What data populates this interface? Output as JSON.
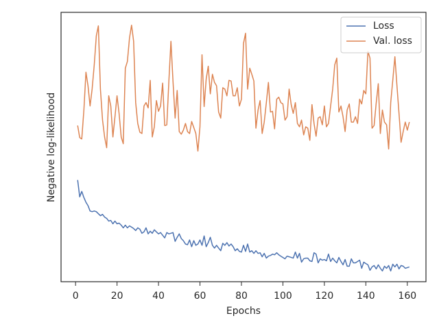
{
  "chart_data": {
    "type": "line",
    "xlabel": "Epochs",
    "ylabel": "Negative log-likelihood",
    "x": [
      1,
      2,
      3,
      4,
      5,
      6,
      7,
      8,
      9,
      10,
      11,
      12,
      13,
      14,
      15,
      16,
      17,
      18,
      19,
      20,
      21,
      22,
      23,
      24,
      25,
      26,
      27,
      28,
      29,
      30,
      31,
      32,
      33,
      34,
      35,
      36,
      37,
      38,
      39,
      40,
      41,
      42,
      43,
      44,
      45,
      46,
      47,
      48,
      49,
      50,
      51,
      52,
      53,
      54,
      55,
      56,
      57,
      58,
      59,
      60,
      61,
      62,
      63,
      64,
      65,
      66,
      67,
      68,
      69,
      70,
      71,
      72,
      73,
      74,
      75,
      76,
      77,
      78,
      79,
      80,
      81,
      82,
      83,
      84,
      85,
      86,
      87,
      88,
      89,
      90,
      91,
      92,
      93,
      94,
      95,
      96,
      97,
      98,
      99,
      100,
      101,
      102,
      103,
      104,
      105,
      106,
      107,
      108,
      109,
      110,
      111,
      112,
      113,
      114,
      115,
      116,
      117,
      118,
      119,
      120,
      121,
      122,
      123,
      124,
      125,
      126,
      127,
      128,
      129,
      130,
      131,
      132,
      133,
      134,
      135,
      136,
      137,
      138,
      139,
      140,
      141,
      142,
      143,
      144,
      145,
      146,
      147,
      148,
      149,
      150,
      151,
      152,
      153,
      154,
      155,
      156,
      157,
      158,
      159,
      160,
      161
    ],
    "series": [
      {
        "name": "Loss",
        "color": "#4c72b0",
        "values": [
          15.1,
          12.6,
          13.4,
          12.5,
          11.8,
          11.3,
          10.5,
          10.4,
          10.5,
          10.4,
          10.1,
          9.8,
          10.0,
          9.6,
          9.4,
          9.0,
          9.1,
          8.6,
          9.0,
          8.6,
          8.7,
          8.4,
          8.0,
          8.4,
          8.0,
          8.3,
          8.1,
          7.9,
          7.6,
          8.0,
          7.8,
          7.2,
          7.4,
          8.0,
          7.1,
          7.5,
          7.2,
          7.7,
          7.4,
          7.1,
          7.3,
          6.9,
          6.5,
          7.3,
          7.1,
          7.2,
          7.3,
          6.0,
          6.6,
          7.1,
          6.4,
          6.1,
          5.6,
          5.5,
          6.2,
          5.2,
          6.1,
          5.4,
          5.6,
          6.2,
          5.4,
          6.8,
          5.2,
          5.8,
          6.6,
          5.4,
          5.0,
          5.4,
          5.0,
          4.6,
          5.7,
          5.4,
          5.8,
          5.3,
          5.6,
          5.2,
          4.6,
          4.9,
          4.5,
          4.4,
          5.4,
          4.5,
          5.6,
          4.4,
          4.6,
          4.2,
          4.6,
          4.2,
          4.3,
          3.7,
          4.2,
          3.5,
          3.8,
          3.9,
          4.1,
          4.0,
          4.3,
          4.0,
          3.8,
          3.6,
          3.4,
          3.8,
          3.7,
          3.6,
          3.5,
          4.4,
          3.5,
          4.2,
          2.9,
          3.4,
          3.5,
          3.5,
          3.1,
          3.0,
          4.3,
          4.1,
          2.8,
          3.4,
          3.2,
          3.3,
          3.1,
          4.1,
          3.0,
          3.5,
          3.1,
          2.8,
          3.6,
          3.0,
          2.5,
          3.3,
          2.3,
          2.3,
          3.4,
          2.8,
          2.8,
          3.0,
          3.2,
          2.0,
          2.9,
          2.7,
          2.5,
          1.7,
          2.2,
          2.4,
          1.9,
          2.5,
          2.0,
          1.6,
          2.3,
          2.0,
          2.4,
          1.6,
          2.6,
          2.2,
          2.6,
          1.9,
          2.4,
          2.3,
          2.0,
          2.1,
          2.2
        ]
      },
      {
        "name": "Val. loss",
        "color": "#dd8452",
        "values": [
          23.2,
          21.4,
          21.2,
          25.5,
          31.1,
          29.1,
          26.1,
          28.6,
          32.2,
          36.5,
          38.0,
          28.6,
          24.0,
          21.5,
          19.9,
          27.6,
          26.1,
          21.5,
          24.5,
          27.6,
          25.0,
          21.5,
          20.5,
          31.7,
          32.7,
          36.2,
          38.1,
          35.7,
          26.6,
          23.5,
          22.2,
          22.0,
          26.1,
          26.6,
          25.8,
          29.9,
          21.5,
          23.0,
          26.9,
          25.3,
          26.1,
          29.5,
          23.2,
          23.3,
          29.8,
          35.7,
          29.8,
          24.3,
          28.4,
          22.3,
          21.9,
          22.5,
          23.5,
          22.3,
          22.0,
          23.8,
          22.9,
          22.0,
          19.4,
          23.0,
          33.7,
          26.0,
          30.1,
          32.0,
          27.9,
          30.8,
          29.6,
          29.1,
          25.2,
          24.3,
          28.8,
          28.6,
          27.6,
          29.9,
          29.8,
          27.6,
          27.6,
          28.8,
          26.1,
          27.1,
          35.4,
          36.9,
          28.6,
          31.7,
          30.8,
          29.8,
          22.8,
          25.5,
          26.9,
          22.0,
          23.7,
          26.6,
          29.6,
          25.2,
          25.3,
          22.7,
          27.1,
          27.4,
          26.6,
          26.4,
          24.0,
          24.5,
          28.6,
          26.3,
          25.0,
          26.6,
          23.5,
          23.0,
          24.0,
          21.8,
          23.0,
          22.8,
          21.0,
          26.3,
          23.5,
          21.6,
          24.3,
          24.5,
          23.3,
          26.1,
          23.0,
          23.5,
          26.1,
          28.6,
          32.2,
          33.2,
          25.2,
          26.1,
          24.5,
          22.3,
          25.5,
          26.4,
          23.7,
          23.7,
          24.5,
          23.5,
          27.1,
          26.4,
          28.4,
          27.9,
          34.2,
          33.2,
          22.8,
          23.2,
          26.6,
          29.4,
          22.0,
          25.5,
          23.7,
          23.3,
          19.7,
          26.6,
          29.9,
          33.4,
          29.1,
          25.0,
          20.7,
          22.3,
          23.7,
          22.5,
          23.7
        ]
      }
    ],
    "xlim": [
      -7,
      169
    ],
    "ylim": [
      0,
      40
    ],
    "xticks": [
      0,
      20,
      40,
      60,
      80,
      100,
      120,
      140,
      160
    ],
    "legend": "upper right"
  }
}
